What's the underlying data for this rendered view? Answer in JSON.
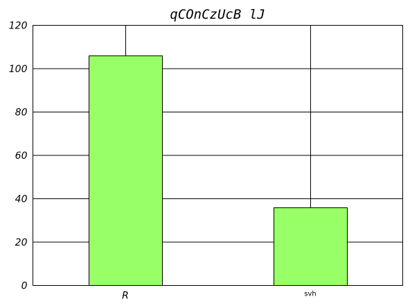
{
  "chart_data": {
    "type": "bar",
    "title": "qCOnCzUcB lJ",
    "xlabel": "",
    "ylabel": "",
    "categories": [
      "R",
      "svh"
    ],
    "values": [
      106,
      36
    ],
    "ylim": [
      0,
      120
    ],
    "yticks": [
      0,
      20,
      40,
      60,
      80,
      100,
      120
    ],
    "grid": true,
    "bar_color": "#99ff66"
  }
}
